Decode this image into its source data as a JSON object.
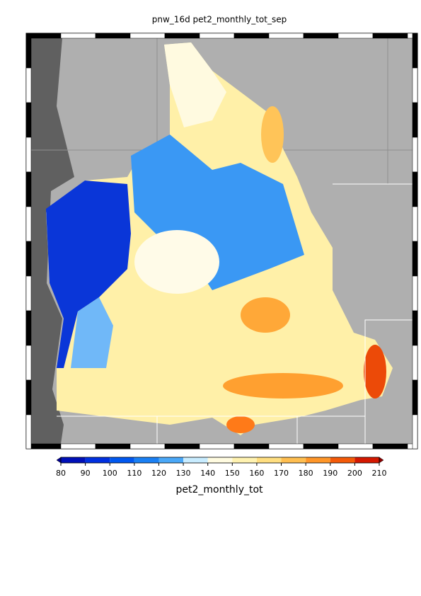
{
  "title": "pnw_16d pet2_monthly_tot_sep",
  "colorbar": {
    "label": "pet2_monthly_tot",
    "ticks": [
      80,
      90,
      100,
      110,
      120,
      130,
      140,
      150,
      160,
      170,
      180,
      190,
      200,
      210
    ],
    "colors": [
      "#0010b8",
      "#0030e0",
      "#0058f0",
      "#1a80f4",
      "#4aa8f8",
      "#c8ecff",
      "#fffbe0",
      "#fff2b0",
      "#ffde80",
      "#ffbe50",
      "#ff9628",
      "#f45a08",
      "#d41800"
    ],
    "under_color": "#000090",
    "over_color": "#900000"
  }
}
